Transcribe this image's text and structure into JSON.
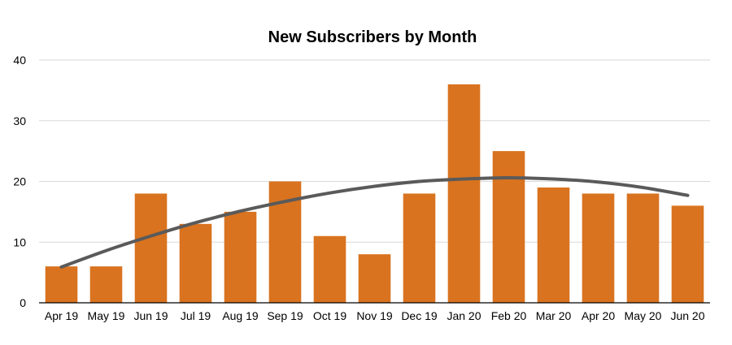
{
  "chart_data": {
    "type": "bar",
    "title": "New Subscribers by Month",
    "xlabel": "",
    "ylabel": "",
    "categories": [
      "Apr 19",
      "May 19",
      "Jun 19",
      "Jul 19",
      "Aug 19",
      "Sep 19",
      "Oct 19",
      "Nov 19",
      "Dec 19",
      "Jan 20",
      "Feb 20",
      "Mar 20",
      "Apr 20",
      "May 20",
      "Jun 20"
    ],
    "values": [
      6,
      6,
      18,
      13,
      15,
      20,
      11,
      8,
      18,
      36,
      25,
      19,
      18,
      18,
      16
    ],
    "ylim": [
      0,
      40
    ],
    "yticks": [
      0,
      10,
      20,
      30,
      40
    ],
    "grid": true,
    "legend": "none",
    "bar_color": "#D9731F",
    "trendline": {
      "type": "polynomial",
      "color": "#5A5A5A",
      "values": [
        5.9,
        8.6,
        11.0,
        13.2,
        15.1,
        16.7,
        18.1,
        19.2,
        20.0,
        20.4,
        20.6,
        20.4,
        19.9,
        19.0,
        17.7
      ]
    }
  }
}
